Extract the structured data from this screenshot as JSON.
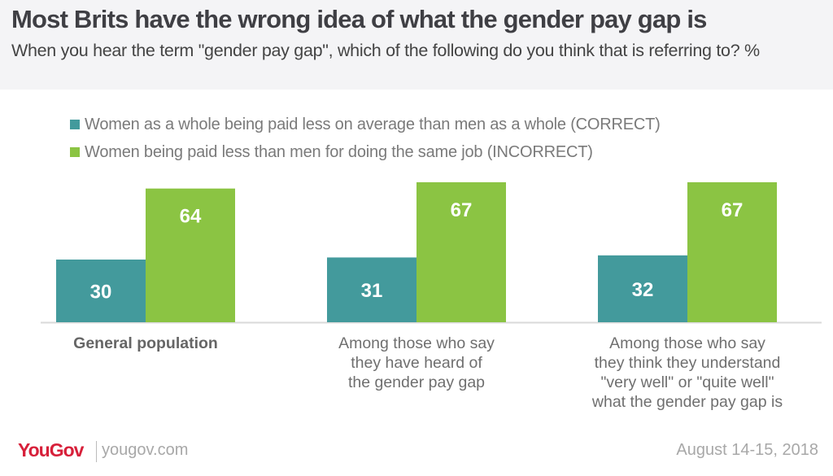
{
  "header": {
    "title": "Most Brits have the wrong idea of what the gender pay gap is",
    "subtitle": "When you hear the term \"gender pay gap\", which of the following do you think that is referring to? %"
  },
  "footer": {
    "brand": "YouGov",
    "url": "yougov.com",
    "date": "August 14-15, 2018"
  },
  "chart_data": {
    "type": "bar",
    "title": "Most Brits have the wrong idea of what the gender pay gap is",
    "subtitle": "When you hear the term \"gender pay gap\", which of the following do you think that is referring to? %",
    "xlabel": "",
    "ylabel": "%",
    "ylim": [
      0,
      70
    ],
    "grid": false,
    "legend_position": "top-left",
    "categories": [
      "General population",
      "Among those who say they have heard of the gender pay gap",
      "Among those who say they think they understand \"very well\" or \"quite well\" what the gender pay gap is"
    ],
    "category_lines": [
      [
        "General population"
      ],
      [
        "Among those who say",
        "they have heard of",
        "the gender pay gap"
      ],
      [
        "Among those who say",
        "they think they understand",
        "\"very well\" or \"quite well\"",
        "what the gender pay gap is"
      ]
    ],
    "series": [
      {
        "name": "Women as a whole being paid less on average than men as a whole (CORRECT)",
        "color": "#439a9c",
        "values": [
          30,
          31,
          32
        ]
      },
      {
        "name": "Women being paid less than men for doing the same job (INCORRECT)",
        "color": "#8bc443",
        "values": [
          64,
          67,
          67
        ]
      }
    ]
  }
}
